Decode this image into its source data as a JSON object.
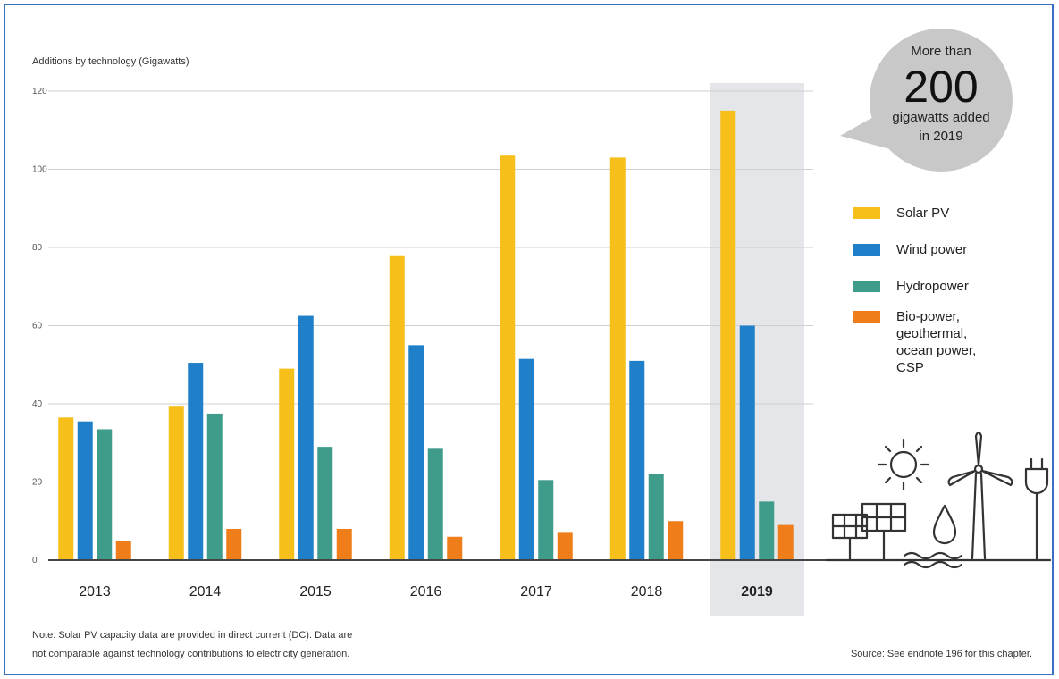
{
  "chart_data": {
    "type": "bar",
    "ylabel": "Additions by technology (Gigawatts)",
    "ylim": [
      0,
      120
    ],
    "yticks": [
      0,
      20,
      40,
      60,
      80,
      100,
      120
    ],
    "categories": [
      "2013",
      "2014",
      "2015",
      "2016",
      "2017",
      "2018",
      "2019"
    ],
    "highlight_category": "2019",
    "series": [
      {
        "name": "Solar PV",
        "color": "#f6bf1a",
        "values": [
          36.5,
          39.5,
          49,
          78,
          103.5,
          103,
          115
        ]
      },
      {
        "name": "Wind power",
        "color": "#1f7fc9",
        "values": [
          35.5,
          50.5,
          62.5,
          55,
          51.5,
          51,
          60
        ]
      },
      {
        "name": "Hydropower",
        "color": "#3f9c8a",
        "values": [
          33.5,
          37.5,
          29,
          28.5,
          20.5,
          22,
          15
        ]
      },
      {
        "name": "Bio-power, geothermal, ocean power, CSP",
        "color": "#ef7d1a",
        "values": [
          5,
          8,
          8,
          6,
          7,
          10,
          9
        ]
      }
    ],
    "legend_lines": [
      [
        "Solar PV"
      ],
      [
        "Wind power"
      ],
      [
        "Hydropower"
      ],
      [
        "Bio-power,",
        "geothermal,",
        "ocean power,",
        "CSP"
      ]
    ],
    "legend_position": "right",
    "grid": true,
    "callout": {
      "line1": "More than",
      "big": "200",
      "line2": "gigawatts added",
      "line3": "in 2019"
    },
    "note_lines": [
      "Note: Solar PV capacity data are provided in direct current (DC). Data are",
      "not comparable against technology contributions to electricity generation."
    ],
    "source": "Source: See endnote 196 for this chapter.",
    "colors": {
      "highlight_band": "#e4e6e9",
      "grid": "#cfcfcf",
      "axis": "#444444",
      "bubble": "#c8c8c8",
      "icon_stroke": "#333333"
    },
    "icon_names": [
      "solar-panel-icon",
      "sun-icon",
      "water-drop-icon",
      "wind-turbine-icon",
      "plug-icon"
    ]
  }
}
